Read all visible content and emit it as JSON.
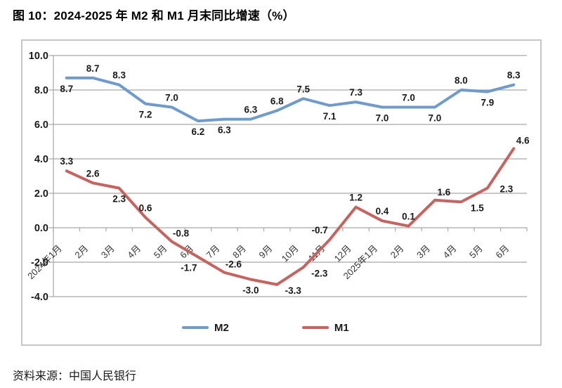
{
  "title": "图 10：2024-2025 年 M2 和 M1 月末同比增速（%）",
  "source": "资料来源：中国人民银行",
  "colors": {
    "grid": "#a6a6a6",
    "border": "#c6c6c6",
    "text": "#1a1a1a",
    "month_label": "#333333",
    "m2": "#6d9bd0",
    "m1": "#c9615c"
  },
  "chart_data": {
    "type": "line",
    "title": "2024-2025 年 M2 和 M1 月末同比增速（%）",
    "categories": [
      "2024年1月",
      "2月",
      "3月",
      "4月",
      "5月",
      "6月",
      "7月",
      "8月",
      "9月",
      "10月",
      "11月",
      "12月",
      "2025年1月",
      "2月",
      "3月",
      "4月",
      "5月",
      "6月"
    ],
    "series": [
      {
        "name": "M2",
        "color": "#6d9bd0",
        "values": [
          8.7,
          8.7,
          8.3,
          7.2,
          7.0,
          6.2,
          6.3,
          6.3,
          6.8,
          7.5,
          7.1,
          7.3,
          7.0,
          7.0,
          7.0,
          8.0,
          7.9,
          8.3
        ],
        "label_sides": [
          "below",
          "above",
          "above",
          "below",
          "above",
          "below",
          "below",
          "above",
          "above",
          "above",
          "below",
          "above",
          "below",
          "above",
          "below",
          "above",
          "below",
          "above"
        ]
      },
      {
        "name": "M1",
        "color": "#c9615c",
        "values": [
          3.3,
          2.6,
          2.3,
          0.6,
          -0.8,
          -1.7,
          -2.6,
          -3.0,
          -3.3,
          -2.3,
          -0.7,
          1.2,
          0.4,
          0.1,
          1.6,
          1.5,
          2.3,
          4.6
        ],
        "label_sides": [
          "above",
          "above",
          "below",
          "above",
          "above-right",
          "below-left",
          "above-right",
          "below",
          "below-right",
          "below-right",
          "above-left",
          "above",
          "above",
          "above",
          "above-right",
          "below-right",
          "right",
          "above-right"
        ]
      }
    ],
    "ylim": [
      -4.0,
      10.0
    ],
    "ytick_step": 2.0,
    "ytick_labels": [
      "10.0",
      "8.0",
      "6.0",
      "4.0",
      "2.0",
      "0.0",
      "-2.0",
      "-4.0"
    ],
    "grid": true,
    "legend_position": "bottom",
    "x_labels_rotation": -45,
    "value_decimals": 1
  }
}
